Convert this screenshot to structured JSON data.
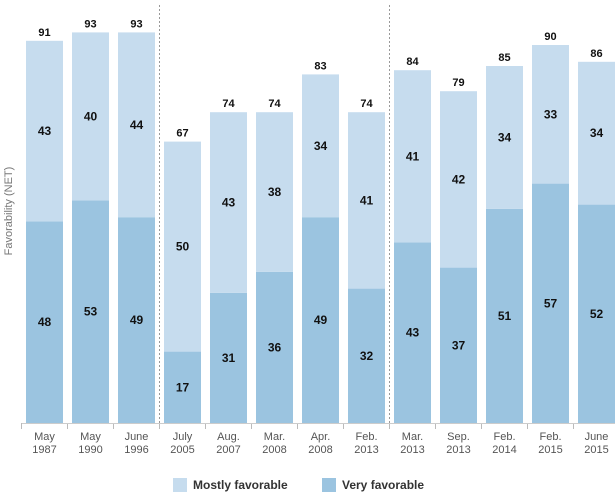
{
  "chart_data": {
    "type": "bar",
    "stacked": true,
    "categories": [
      "May\n1987",
      "May\n1990",
      "June\n1996",
      "July\n2005",
      "Aug.\n2007",
      "Mar.\n2008",
      "Apr.\n2008",
      "Feb.\n2013",
      "Mar.\n2013",
      "Sep.\n2013",
      "Feb.\n2014",
      "Feb.\n2015",
      "June\n2015"
    ],
    "series": [
      {
        "name": "Very favorable",
        "values": [
          48,
          53,
          49,
          17,
          31,
          36,
          49,
          32,
          43,
          37,
          51,
          57,
          52
        ],
        "color": "#9bc4e0"
      },
      {
        "name": "Mostly favorable",
        "values": [
          43,
          40,
          44,
          50,
          43,
          38,
          34,
          41,
          41,
          42,
          34,
          33,
          34
        ],
        "color": "#c6dcee"
      }
    ],
    "totals": [
      91,
      93,
      93,
      67,
      74,
      74,
      83,
      74,
      84,
      79,
      85,
      90,
      86
    ],
    "ylabel": "Favorability (NET)",
    "ylim": [
      0,
      100
    ],
    "separators_after": [
      3,
      8
    ],
    "legend": {
      "position": "bottom",
      "entries": [
        "Mostly favorable",
        "Very favorable"
      ]
    }
  }
}
